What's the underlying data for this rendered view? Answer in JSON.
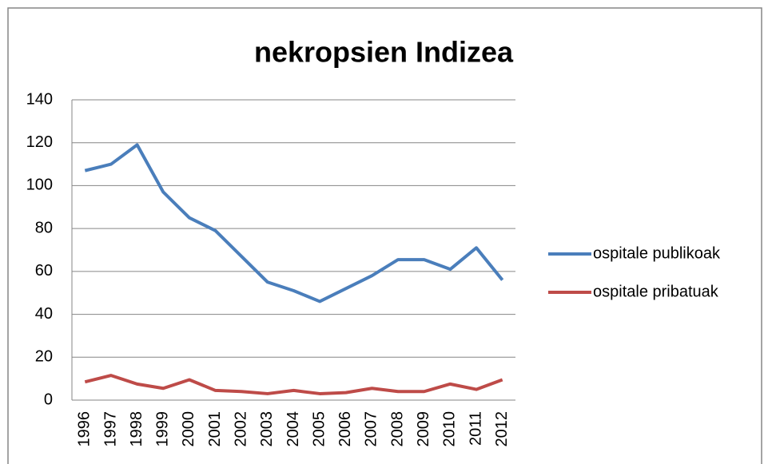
{
  "chart_data": {
    "type": "line",
    "title": "nekropsien Indizea",
    "categories": [
      "1996",
      "1997",
      "1998",
      "1999",
      "2000",
      "2001",
      "2002",
      "2003",
      "2004",
      "2005",
      "2006",
      "2007",
      "2008",
      "2009",
      "2010",
      "2011",
      "2012"
    ],
    "series": [
      {
        "name": "ospitale publikoak",
        "color": "#4a7ebb",
        "values": [
          107,
          110,
          119,
          97,
          85,
          79,
          67,
          55,
          51,
          46,
          52,
          58,
          65.5,
          65.5,
          61,
          71,
          56
        ]
      },
      {
        "name": "ospitale pribatuak",
        "color": "#be4b48",
        "values": [
          8.5,
          11.5,
          7.5,
          5.5,
          9.5,
          4.5,
          4,
          3,
          4.5,
          3,
          3.5,
          5.5,
          4,
          4,
          7.5,
          5,
          9.5
        ]
      }
    ],
    "ylim": [
      0,
      140
    ],
    "yticks": [
      0,
      20,
      40,
      60,
      80,
      100,
      120,
      140
    ],
    "grid": true,
    "legend": "right"
  }
}
